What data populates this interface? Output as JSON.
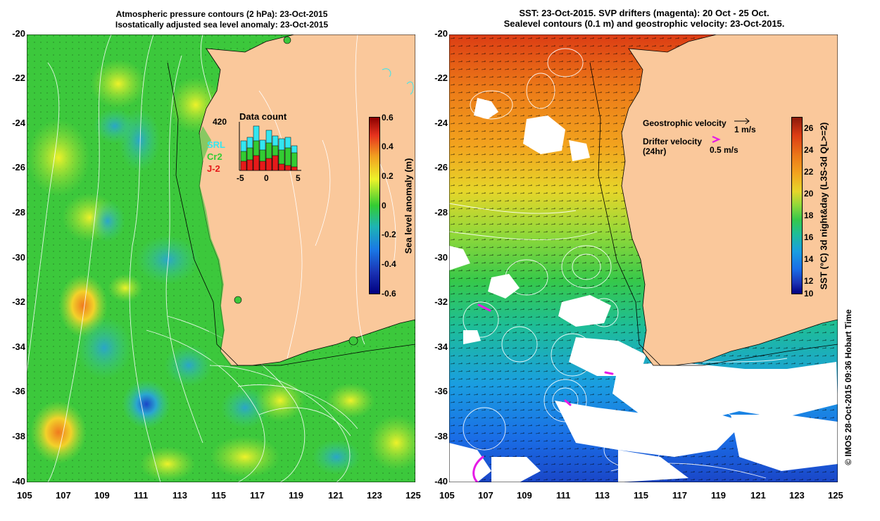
{
  "left_panel": {
    "title_line1": "Atmospheric pressure contours (2 hPa): 23-Oct-2015",
    "title_line2": "Isostatically adjusted sea level anomaly: 23-Oct-2015",
    "colorbar_label": "Sea level anomaly (m)",
    "colorbar_ticks": [
      "0.6",
      "0.4",
      "0.2",
      "0",
      "-0.2",
      "-0.4",
      "-0.6"
    ],
    "inset": {
      "title": "Data count",
      "max_label": "420",
      "xticks": [
        "-5",
        "0",
        "5"
      ],
      "legend": [
        {
          "label": "SRL",
          "color": "#33e6f0"
        },
        {
          "label": "Cr2",
          "color": "#33cc33"
        },
        {
          "label": "J-2",
          "color": "#e61a1a"
        }
      ]
    }
  },
  "right_panel": {
    "title_line1": "SST: 23-Oct-2015. SVP drifters (magenta): 20 Oct - 25 Oct.",
    "title_line2": "Sealevel contours (0.1 m) and geostrophic velocity: 23-Oct-2015.",
    "colorbar_label": "SST (°C) 3d night&day (L3S-3d QL>=2)",
    "colorbar_ticks": [
      "26",
      "24",
      "22",
      "20",
      "18",
      "16",
      "14",
      "12",
      "10"
    ],
    "legend_geo": "Geostrophic velocity",
    "legend_geo_scale": "1 m/s",
    "legend_drifter_line1": "Drifter velocity",
    "legend_drifter_line2": "(24hr)",
    "legend_drifter_scale": "0.5 m/s"
  },
  "lat_labels": [
    "-20",
    "-22",
    "-24",
    "-26",
    "-28",
    "-30",
    "-32",
    "-34",
    "-36",
    "-38",
    "-40"
  ],
  "lon_labels": [
    "105",
    "107",
    "109",
    "111",
    "113",
    "115",
    "117",
    "119",
    "121",
    "123",
    "125"
  ],
  "credit": "© IMOS 28-Oct-2015 09:36 Hobart Time",
  "colors": {
    "land": "#fac89b",
    "ocean_green": "#33cc33",
    "sst_warm": "#e65a14",
    "sst_cool": "#1a6ee6"
  }
}
